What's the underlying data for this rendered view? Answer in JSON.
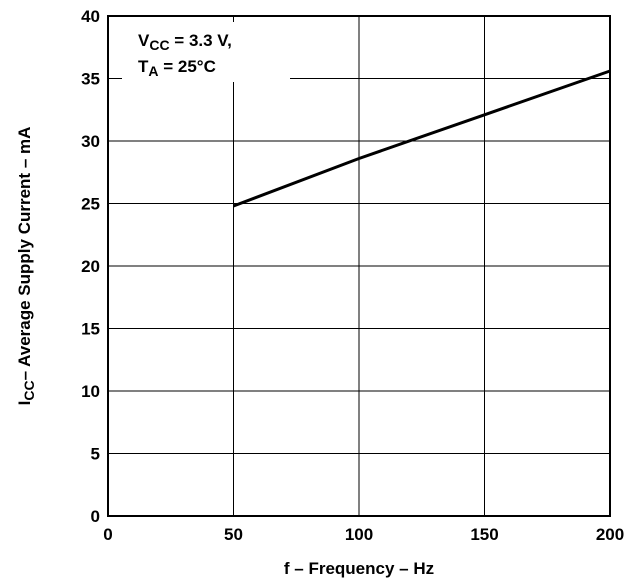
{
  "chart_data": {
    "type": "line",
    "title": "",
    "xlabel": "f – Frequency – Hz",
    "ylabel": {
      "main": "I",
      "sub": "CC",
      "rest": "– Average Supply Current – mA"
    },
    "xlim": [
      0,
      200
    ],
    "ylim": [
      0,
      40
    ],
    "xticks": [
      "0",
      "50",
      "100",
      "150",
      "200"
    ],
    "yticks": [
      "0",
      "5",
      "10",
      "15",
      "20",
      "25",
      "30",
      "35",
      "40"
    ],
    "grid": true,
    "annotation": {
      "line1": {
        "main": "V",
        "sub": "CC",
        "rest": " = 3.3 V,"
      },
      "line2": {
        "main": "T",
        "sub": "A",
        "rest": " = 25°C"
      }
    },
    "series": [
      {
        "x": [
          50,
          100,
          150,
          200
        ],
        "y": [
          24.8,
          28.6,
          32.1,
          35.6
        ]
      }
    ]
  }
}
